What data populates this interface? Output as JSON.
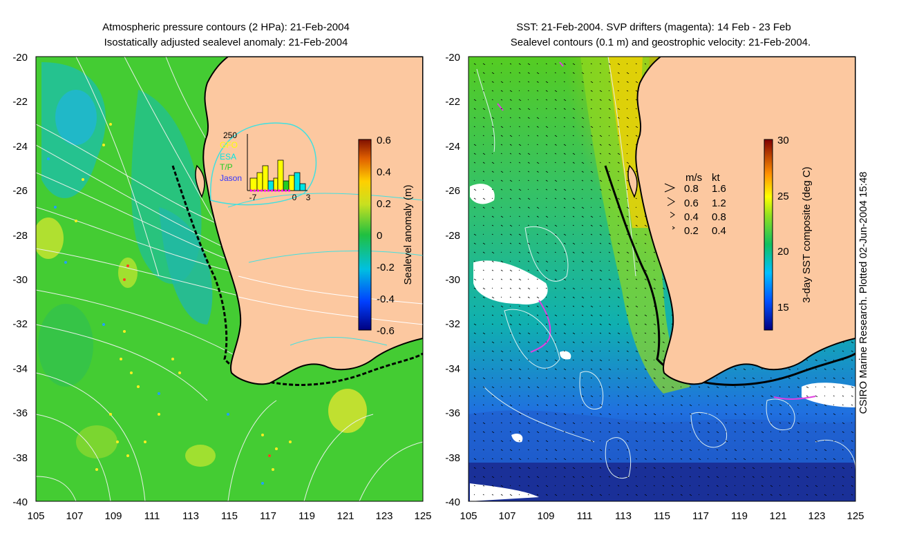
{
  "left_panel": {
    "title_line1": "Atmospheric pressure contours (2 HPa): 21-Feb-2004",
    "title_line2": "Isostatically adjusted sealevel anomaly: 21-Feb-2004",
    "y_ticks": [
      "-20",
      "-22",
      "-24",
      "-26",
      "-28",
      "-30",
      "-32",
      "-34",
      "-36",
      "-38",
      "-40"
    ],
    "x_ticks": [
      "105",
      "107",
      "109",
      "111",
      "113",
      "115",
      "117",
      "119",
      "121",
      "123",
      "125"
    ],
    "colorbar": {
      "label": "Sealevel anomaly (m)",
      "ticks": [
        "0.6",
        "0.4",
        "0.2",
        "0",
        "-0.2",
        "-0.4",
        "-0.6"
      ]
    },
    "inset": {
      "y_max": "250",
      "x_ticks": [
        "-7",
        "0",
        "3"
      ],
      "legend": [
        {
          "label": "GFO",
          "color": "#ffff00"
        },
        {
          "label": "ESA",
          "color": "#00e5e5"
        },
        {
          "label": "T/P",
          "color": "#22cc22"
        },
        {
          "label": "Jason",
          "color": "#3333ff"
        }
      ]
    }
  },
  "right_panel": {
    "title_line1": "SST: 21-Feb-2004. SVP drifters (magenta): 14 Feb - 23 Feb",
    "title_line2": "Sealevel contours (0.1 m) and geostrophic velocity: 21-Feb-2004.",
    "y_ticks": [
      "-20",
      "-22",
      "-24",
      "-26",
      "-28",
      "-30",
      "-32",
      "-34",
      "-36",
      "-38",
      "-40"
    ],
    "x_ticks": [
      "105",
      "107",
      "109",
      "111",
      "113",
      "115",
      "117",
      "119",
      "121",
      "123",
      "125"
    ],
    "colorbar": {
      "label": "3-day SST composite (deg C)",
      "ticks": [
        "30",
        "25",
        "20",
        "15"
      ]
    },
    "velocity_key": {
      "header_ms": "m/s",
      "header_kt": "kt",
      "rows": [
        {
          "ms": "0.8",
          "kt": "1.6"
        },
        {
          "ms": "0.6",
          "kt": "1.2"
        },
        {
          "ms": "0.4",
          "kt": "0.8"
        },
        {
          "ms": "0.2",
          "kt": "0.4"
        }
      ]
    }
  },
  "credit": "CSIRO Marine Research. Plotted 02-Jun-2004 15:48"
}
